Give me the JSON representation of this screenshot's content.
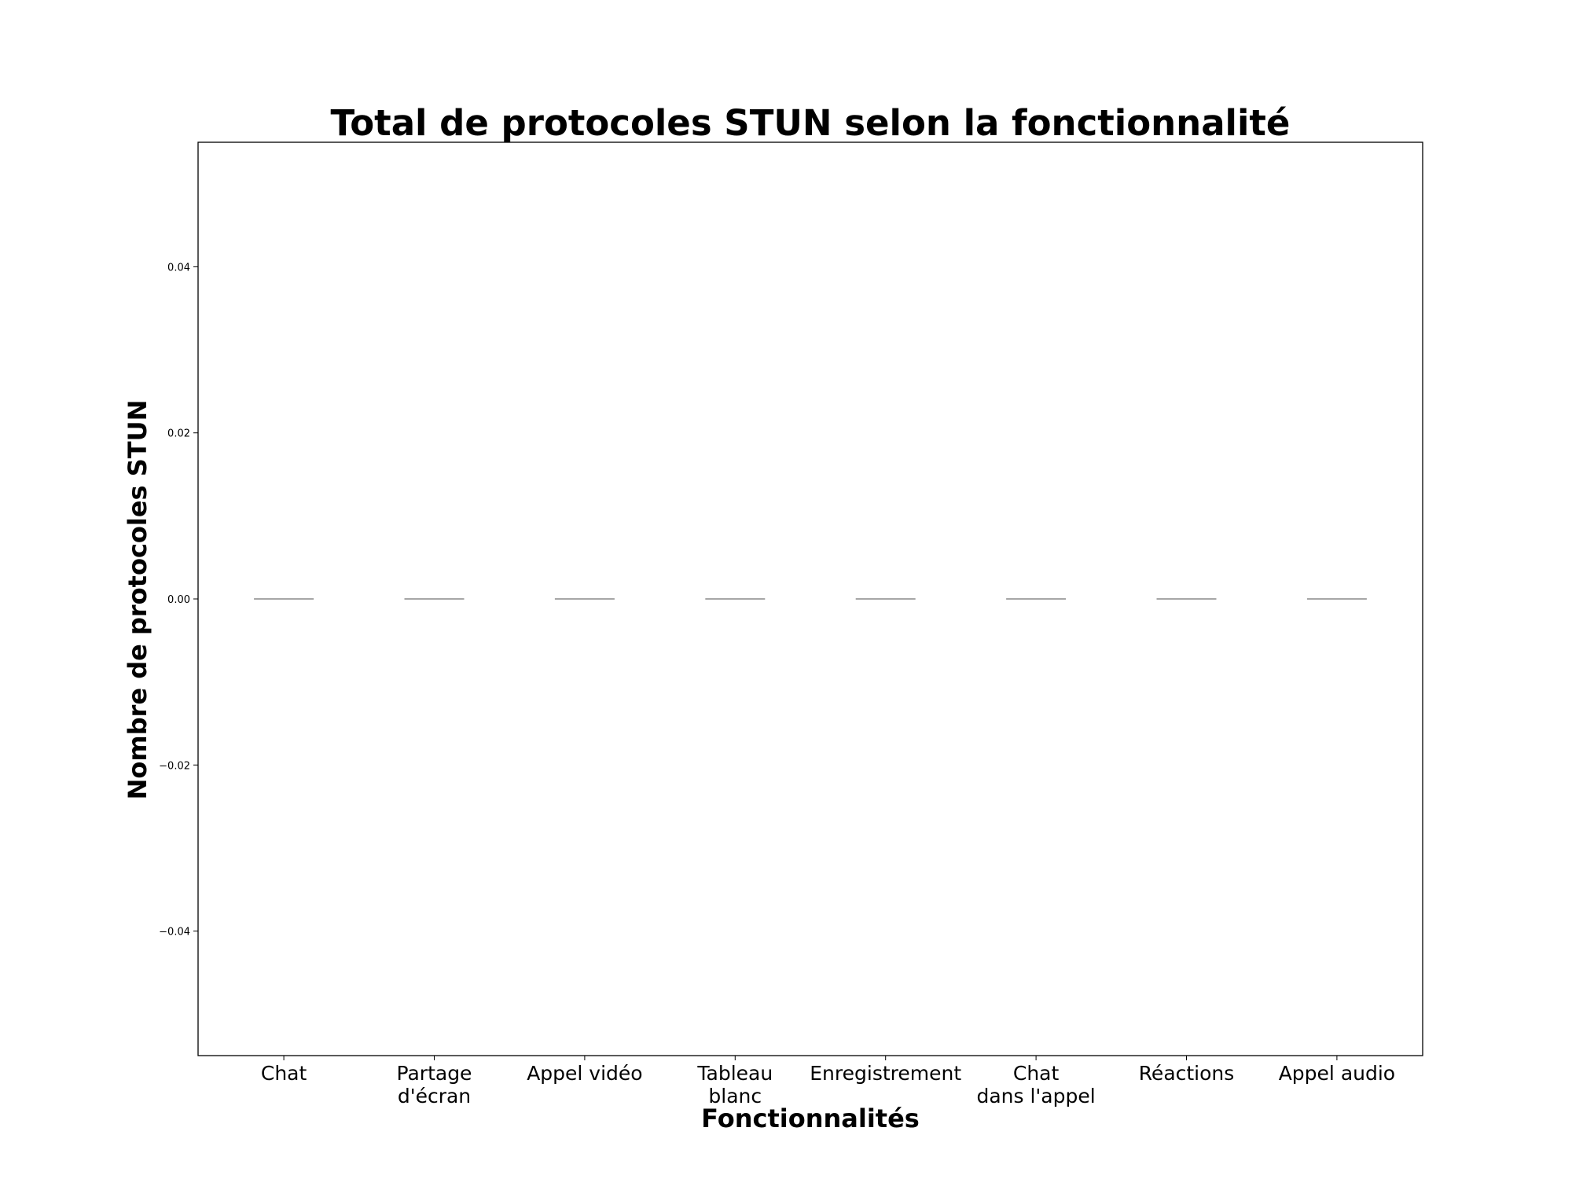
{
  "chart_data": {
    "type": "box",
    "title": "Total de protocoles STUN selon la fonctionnalité",
    "xlabel": "Fonctionnalités",
    "ylabel": "Nombre de protocoles STUN",
    "categories": [
      "Chat",
      "Partage\nd'écran",
      "Appel vidéo",
      "Tableau\nblanc",
      "Enregistrement",
      "Chat\ndans l'appel",
      "Réactions",
      "Appel audio"
    ],
    "values": [
      0,
      0,
      0,
      0,
      0,
      0,
      0,
      0
    ],
    "ylim": [
      -0.055,
      0.055
    ],
    "yticks": [
      -0.04,
      -0.02,
      0.0,
      0.02,
      0.04
    ],
    "ytick_labels": [
      "−0.04",
      "−0.02",
      "0.00",
      "0.02",
      "0.04"
    ],
    "grid": false,
    "legend": "none",
    "colors": {
      "median_line": "#8a8a8a",
      "axes": "#000000",
      "background": "#ffffff"
    }
  }
}
